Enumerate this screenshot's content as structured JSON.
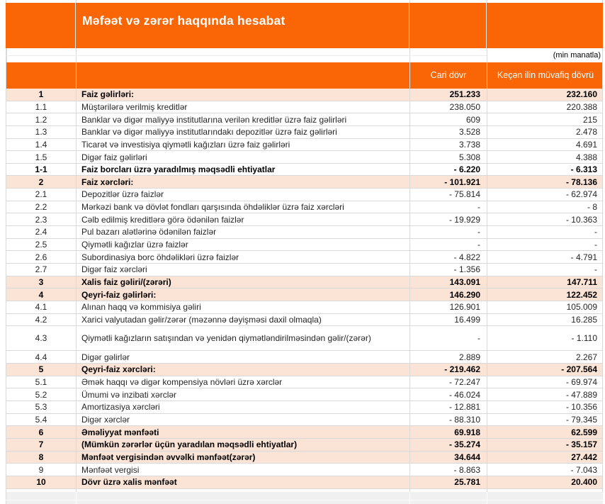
{
  "report": {
    "title": "Məfəət və zərər haqqında hesabat",
    "unit_note": "(min manatla)",
    "columns": {
      "current": "Cari dövr",
      "previous": "Keçən ilin müvafiq dövrü"
    },
    "colors": {
      "accent_orange": "#FA6505",
      "row_highlight_peach": "#FBE3D5",
      "grid_line": "#D9D9D9",
      "empty_area_gray": "#F0F0F0",
      "header_text": "#FFFFFF"
    },
    "rows": [
      {
        "num": "1",
        "label": "Faiz gəlirləri:",
        "current": "251.233",
        "previous": "232.160",
        "bold": true,
        "highlight": true,
        "tall": false
      },
      {
        "num": "1.1",
        "label": "Müştərilərə verilmiş kreditlər",
        "current": "238.050",
        "previous": "220.388",
        "bold": false,
        "highlight": false,
        "tall": false
      },
      {
        "num": "1.2",
        "label": "Banklar və digər maliyyə institutlarına verilən kreditlər üzrə faiz gəlirləri",
        "current": "609",
        "previous": "215",
        "bold": false,
        "highlight": false,
        "tall": false
      },
      {
        "num": "1.3",
        "label": "Banklar və digər maliyyə institutlarındakı depozitlər üzrə faiz gəlirləri",
        "current": "3.528",
        "previous": "2.478",
        "bold": false,
        "highlight": false,
        "tall": false
      },
      {
        "num": "1.4",
        "label": "Ticarət və investisiya qiymətli kağızları üzrə faiz gəlirləri",
        "current": "3.738",
        "previous": "4.691",
        "bold": false,
        "highlight": false,
        "tall": false
      },
      {
        "num": "1.5",
        "label": "Digər faiz gəlirləri",
        "current": "5.308",
        "previous": "4.388",
        "bold": false,
        "highlight": false,
        "tall": false
      },
      {
        "num": "1-1",
        "label": "Faiz borcları üzrə yaradılmış məqsədli ehtiyatlar",
        "current": "- 6.220",
        "previous": "- 6.313",
        "bold": true,
        "highlight": false,
        "tall": false
      },
      {
        "num": "2",
        "label": "Faiz xərcləri:",
        "current": "- 101.921",
        "previous": "- 78.136",
        "bold": true,
        "highlight": true,
        "tall": false
      },
      {
        "num": "2.1",
        "label": "Depozitlər üzrə faizlər",
        "current": "- 75.814",
        "previous": "- 62.974",
        "bold": false,
        "highlight": false,
        "tall": false
      },
      {
        "num": "2.2",
        "label": "Mərkəzi bank və dövlət fondları qarşısında öhdəliklər üzrə faiz xərcləri",
        "current": "-",
        "previous": "- 8",
        "bold": false,
        "highlight": false,
        "tall": false
      },
      {
        "num": "2.3",
        "label": "Cəlb edilmiş kreditlərə görə ödənilən faizlər",
        "current": "- 19.929",
        "previous": "- 10.363",
        "bold": false,
        "highlight": false,
        "tall": false
      },
      {
        "num": "2.4",
        "label": "Pul bazarı alətlərinə ödənilən faizlər",
        "current": "-",
        "previous": "-",
        "bold": false,
        "highlight": false,
        "tall": false
      },
      {
        "num": "2.5",
        "label": "Qiymətli kağızlar üzrə faizlər",
        "current": "-",
        "previous": "-",
        "bold": false,
        "highlight": false,
        "tall": false
      },
      {
        "num": "2.6",
        "label": "Subordinasiya borc öhdəlikləri üzrə faizlər",
        "current": "- 4.822",
        "previous": "- 4.791",
        "bold": false,
        "highlight": false,
        "tall": false
      },
      {
        "num": "2.7",
        "label": "Digər faiz xərcləri",
        "current": "- 1.356",
        "previous": "-",
        "bold": false,
        "highlight": false,
        "tall": false
      },
      {
        "num": "3",
        "label": "Xalis faiz gəliri/(zərəri)",
        "current": "143.091",
        "previous": "147.711",
        "bold": true,
        "highlight": true,
        "tall": false
      },
      {
        "num": "4",
        "label": "Qeyri-faiz gəlirləri:",
        "current": "146.290",
        "previous": "122.452",
        "bold": true,
        "highlight": true,
        "tall": false
      },
      {
        "num": "4.1",
        "label": "Alınan haqq və kommisiya gəliri",
        "current": "126.901",
        "previous": "105.009",
        "bold": false,
        "highlight": false,
        "tall": false
      },
      {
        "num": "4.2",
        "label": "Xarici valyutadan gəlir/zərər (məzənnə dəyişməsi daxil olmaqla)",
        "current": "16.499",
        "previous": "16.285",
        "bold": false,
        "highlight": false,
        "tall": false
      },
      {
        "num": "4.3",
        "label": "Qiymətli kağızların satışından və yenidən qiymətləndirilməsindən gəlir/(zərər)",
        "current": "-",
        "previous": "- 1.110",
        "bold": false,
        "highlight": false,
        "tall": true
      },
      {
        "num": "4.4",
        "label": "Digər gəlirlər",
        "current": "2.889",
        "previous": "2.267",
        "bold": false,
        "highlight": false,
        "tall": false
      },
      {
        "num": "5",
        "label": "Qeyri-faiz xərcləri:",
        "current": "- 219.462",
        "previous": "- 207.564",
        "bold": true,
        "highlight": true,
        "tall": false
      },
      {
        "num": "5.1",
        "label": "Əmək haqqı və digər kompensiya növləri üzrə xərclər",
        "current": "- 72.247",
        "previous": "- 69.974",
        "bold": false,
        "highlight": false,
        "tall": false
      },
      {
        "num": "5.2",
        "label": "Ümumi və inzibati xərclər",
        "current": "- 46.024",
        "previous": "- 47.889",
        "bold": false,
        "highlight": false,
        "tall": false
      },
      {
        "num": "5.3",
        "label": "Amortizasiya xərcləri",
        "current": "- 12.881",
        "previous": "- 10.356",
        "bold": false,
        "highlight": false,
        "tall": false
      },
      {
        "num": "5.4",
        "label": "Digər xərclər",
        "current": "- 88.310",
        "previous": "- 79.345",
        "bold": false,
        "highlight": false,
        "tall": false
      },
      {
        "num": "6",
        "label": "Əməliyyat mənfəəti",
        "current": "69.918",
        "previous": "62.599",
        "bold": true,
        "highlight": true,
        "tall": false
      },
      {
        "num": "7",
        "label": "(Mümkün zərərlər üçün yaradılan məqsədli ehtiyatlar)",
        "current": "- 35.274",
        "previous": "- 35.157",
        "bold": true,
        "highlight": true,
        "tall": false
      },
      {
        "num": "8",
        "label": "Mənfəət vergisindən əvvəlki mənfəət(zərər)",
        "current": "34.644",
        "previous": "27.442",
        "bold": true,
        "highlight": true,
        "tall": false
      },
      {
        "num": "9",
        "label": "Mənfəət vergisi",
        "current": "- 8.863",
        "previous": "- 7.043",
        "bold": false,
        "highlight": false,
        "tall": false
      },
      {
        "num": "10",
        "label": "Dövr üzrə xalis mənfəət",
        "current": "25.781",
        "previous": "20.400",
        "bold": true,
        "highlight": true,
        "tall": false
      }
    ]
  }
}
